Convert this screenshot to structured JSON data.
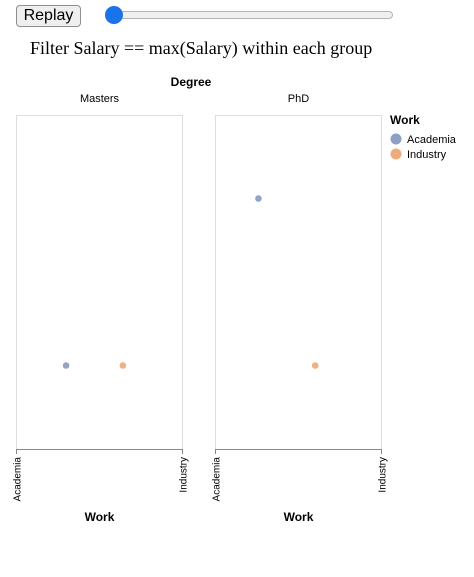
{
  "controls": {
    "replay_label": "Replay",
    "slider_value": 0
  },
  "heading": "Filter Salary == max(Salary) within each group",
  "chart_data": {
    "type": "scatter",
    "facet_title": "Degree",
    "facets": [
      "Masters",
      "PhD"
    ],
    "x_title": "Work",
    "x_categories": [
      "Academia",
      "Industry"
    ],
    "y_title": "",
    "y_range": [
      0,
      1
    ],
    "legend": {
      "title": "Work",
      "position": "top-right",
      "entries": [
        {
          "label": "Academia",
          "color": "#8da0c4"
        },
        {
          "label": "Industry",
          "color": "#eeac7d"
        }
      ]
    },
    "grid": false,
    "points": [
      {
        "facet": "Masters",
        "work": "Academia",
        "x": 0.3,
        "y": 0.25
      },
      {
        "facet": "Masters",
        "work": "Industry",
        "x": 0.64,
        "y": 0.25
      },
      {
        "facet": "PhD",
        "work": "Academia",
        "x": 0.26,
        "y": 0.75
      },
      {
        "facet": "PhD",
        "work": "Industry",
        "x": 0.6,
        "y": 0.25
      }
    ]
  }
}
